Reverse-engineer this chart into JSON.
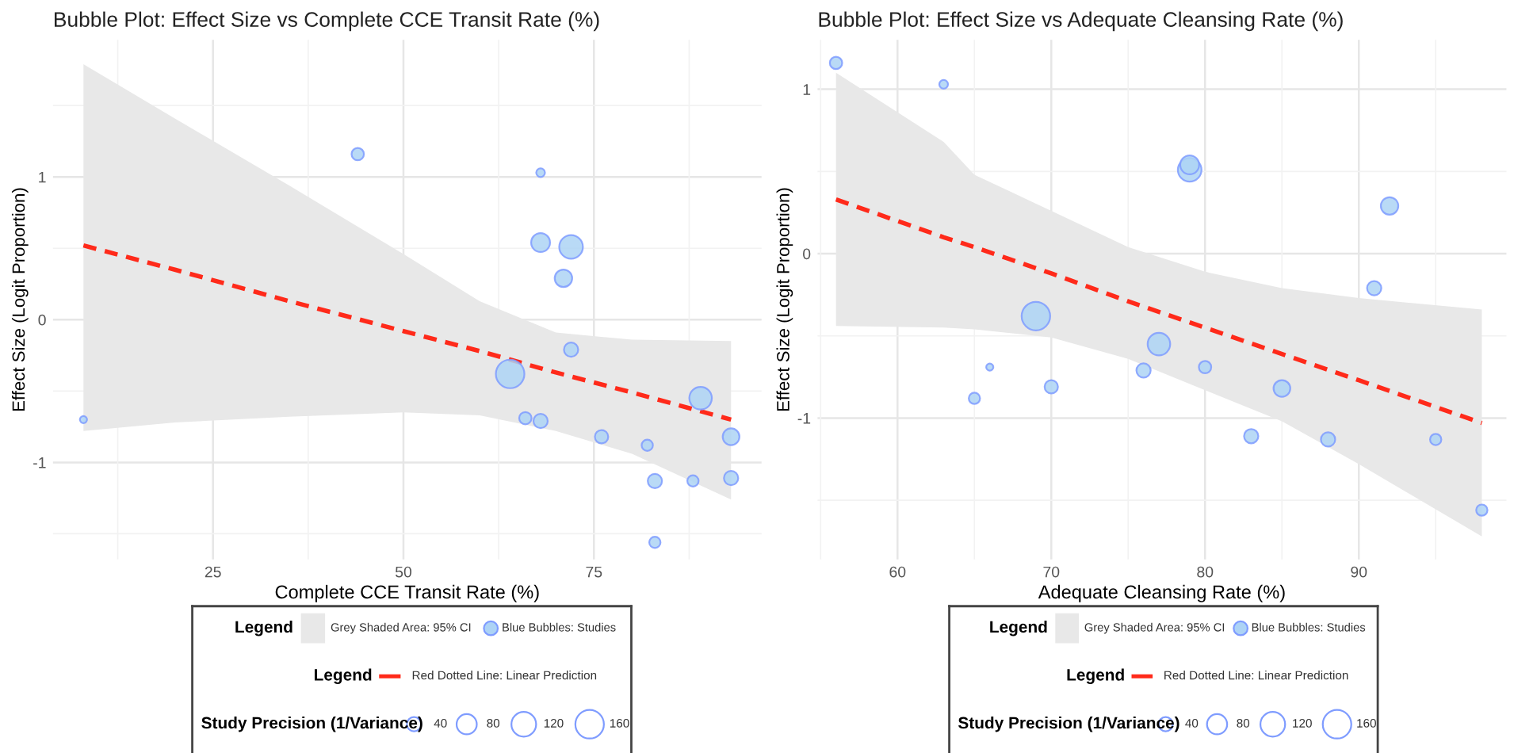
{
  "chart_data": [
    {
      "type": "bubble",
      "title": "Bubble Plot: Effect Size vs Complete CCE Transit Rate (%)",
      "xlabel": "Complete CCE Transit Rate (%)",
      "ylabel": "Effect Size (Logit Proportion)",
      "legend_title": "Legend",
      "annotations": [
        "Grey Shaded Area: 95% CI",
        "Study Precision (1/Variance)"
      ],
      "xlim": [
        4,
        97
      ],
      "xticks": [
        25,
        50,
        75
      ],
      "ylim": [
        -1.68,
        1.96
      ],
      "yticks": [
        -1,
        0,
        1
      ],
      "grid": true,
      "legend": "bottom",
      "size_legend": [
        40,
        80,
        120,
        160
      ],
      "series": [
        {
          "name": "Blue Bubbles: Studies",
          "color": "#add3f5",
          "x": [
            8,
            44,
            68,
            68,
            72,
            71,
            72,
            64,
            66,
            68,
            76,
            82,
            89,
            93,
            83,
            88,
            93,
            83
          ],
          "values": [
            -0.7,
            1.16,
            1.03,
            0.54,
            0.51,
            0.29,
            -0.21,
            -0.38,
            -0.69,
            -0.71,
            -0.82,
            -0.88,
            -0.55,
            -0.82,
            -1.13,
            -1.13,
            -1.11,
            -1.56
          ],
          "sizes": [
            10,
            30,
            15,
            70,
            110,
            60,
            40,
            160,
            30,
            40,
            35,
            25,
            100,
            55,
            40,
            25,
            40,
            25
          ]
        },
        {
          "type": "line",
          "name": "Red Dotted Line: Linear Prediction",
          "color": "#ff2a1a",
          "line_style": "dashed",
          "x": [
            8,
            20,
            35,
            50,
            60,
            70,
            80,
            93
          ],
          "values": [
            0.52,
            0.35,
            0.13,
            -0.08,
            -0.22,
            -0.37,
            -0.51,
            -0.7
          ],
          "lower": [
            -0.78,
            -0.72,
            -0.68,
            -0.65,
            -0.67,
            -0.78,
            -0.94,
            -1.26
          ],
          "upper": [
            1.79,
            1.41,
            0.94,
            0.46,
            0.13,
            -0.09,
            -0.14,
            -0.15
          ]
        }
      ]
    },
    {
      "type": "bubble",
      "title": "Bubble Plot: Effect Size vs Adequate Cleansing Rate (%)",
      "xlabel": "Adequate Cleansing Rate (%)",
      "ylabel": "Effect Size (Logit Proportion)",
      "legend_title": "Legend",
      "annotations": [
        "Grey Shaded Area: 95% CI",
        "Study Precision (1/Variance)"
      ],
      "xlim": [
        54.8,
        99.6
      ],
      "xticks": [
        60,
        70,
        80,
        90
      ],
      "ylim": [
        -1.86,
        1.3
      ],
      "yticks": [
        -1,
        0,
        1
      ],
      "grid": true,
      "legend": "bottom",
      "size_legend": [
        40,
        80,
        120,
        160
      ],
      "series": [
        {
          "name": "Blue Bubbles: Studies",
          "color": "#add3f5",
          "x": [
            56,
            63,
            79,
            79,
            92,
            91,
            69,
            77,
            66,
            65,
            70,
            76,
            80,
            85,
            83,
            88,
            95,
            98
          ],
          "values": [
            1.16,
            1.03,
            0.51,
            0.54,
            0.29,
            -0.21,
            -0.38,
            -0.55,
            -0.69,
            -0.88,
            -0.81,
            -0.71,
            -0.69,
            -0.82,
            -1.11,
            -1.13,
            -1.13,
            -1.56
          ],
          "sizes": [
            30,
            15,
            110,
            70,
            60,
            40,
            160,
            100,
            10,
            25,
            35,
            40,
            30,
            55,
            40,
            40,
            25,
            25
          ]
        },
        {
          "type": "line",
          "name": "Red Dotted Line: Linear Prediction",
          "color": "#ff2a1a",
          "line_style": "dashed",
          "x": [
            56,
            63,
            65,
            70,
            75,
            80,
            85,
            90,
            98
          ],
          "values": [
            0.33,
            0.1,
            0.04,
            -0.12,
            -0.29,
            -0.45,
            -0.61,
            -0.77,
            -1.03
          ],
          "lower": [
            -0.44,
            -0.45,
            -0.46,
            -0.51,
            -0.64,
            -0.83,
            -1.02,
            -1.28,
            -1.72
          ],
          "upper": [
            1.1,
            0.68,
            0.48,
            0.26,
            0.04,
            -0.11,
            -0.21,
            -0.27,
            -0.34
          ]
        }
      ]
    }
  ]
}
